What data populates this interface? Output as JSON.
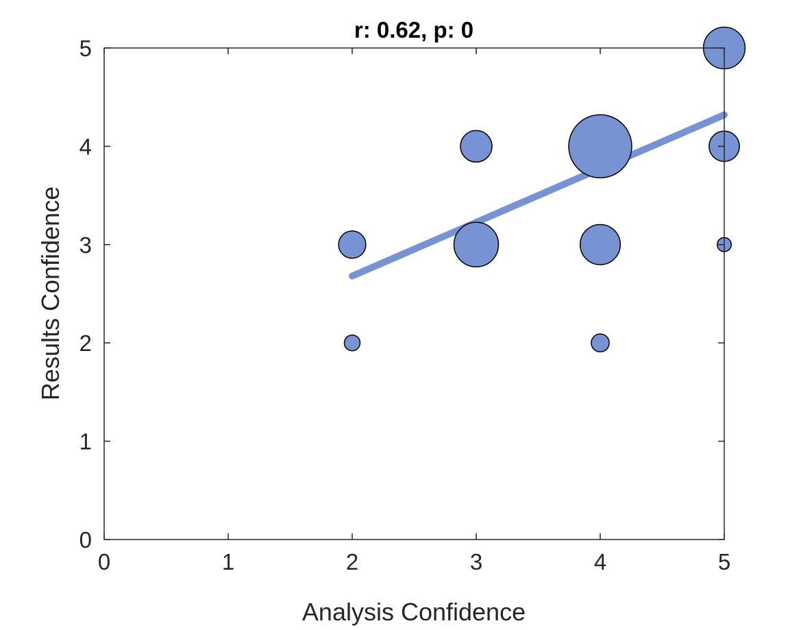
{
  "chart_data": {
    "type": "scatter",
    "title": "r: 0.62, p: 0",
    "xlabel": "Analysis Confidence",
    "ylabel": "Results Confidence",
    "xlim": [
      0,
      5
    ],
    "ylim": [
      0,
      5
    ],
    "xticks": [
      "0",
      "1",
      "2",
      "3",
      "4",
      "5"
    ],
    "yticks": [
      "0",
      "1",
      "2",
      "3",
      "4",
      "5"
    ],
    "grid": false,
    "marker_color": "#7793d3",
    "marker_edge_color": "#000000",
    "points": [
      {
        "x": 2,
        "y": 2,
        "count": 1
      },
      {
        "x": 2,
        "y": 3,
        "count": 3
      },
      {
        "x": 3,
        "y": 3,
        "count": 8
      },
      {
        "x": 3,
        "y": 4,
        "count": 4
      },
      {
        "x": 4,
        "y": 2,
        "count": 1.3
      },
      {
        "x": 4,
        "y": 3,
        "count": 6.5
      },
      {
        "x": 4,
        "y": 4,
        "count": 16
      },
      {
        "x": 5,
        "y": 3,
        "count": 0.8
      },
      {
        "x": 5,
        "y": 4,
        "count": 3.7
      },
      {
        "x": 5,
        "y": 5,
        "count": 7
      }
    ],
    "fit_line": {
      "x": [
        2,
        5
      ],
      "y": [
        2.68,
        4.32
      ],
      "color": "#7793d3"
    }
  }
}
